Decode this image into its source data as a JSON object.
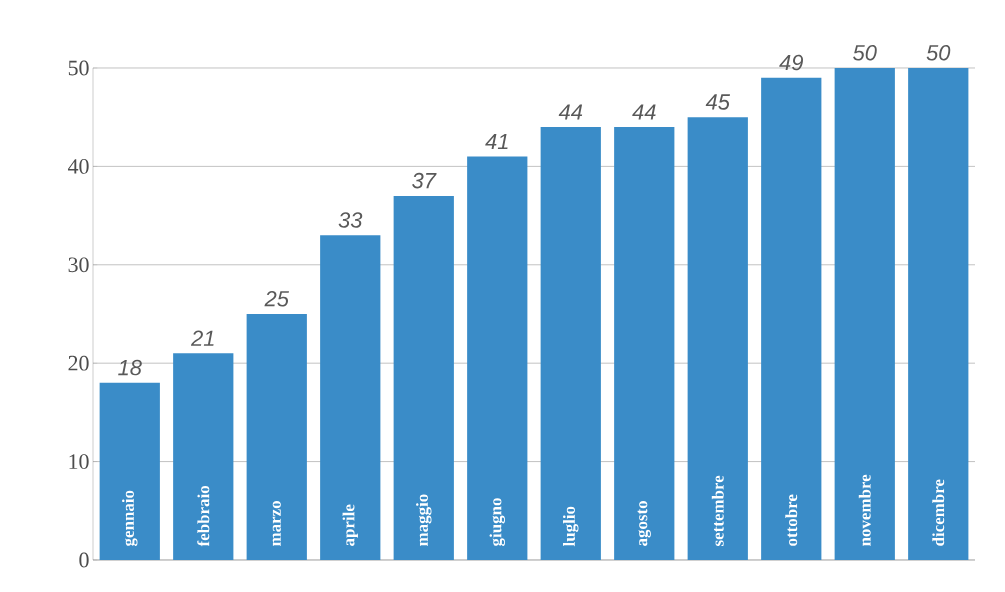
{
  "chart_data": {
    "type": "bar",
    "categories": [
      "gennaio",
      "febbraio",
      "marzo",
      "aprile",
      "maggio",
      "giugno",
      "luglio",
      "agosto",
      "settembre",
      "ottobre",
      "novembre",
      "dicembre"
    ],
    "values": [
      18,
      21,
      25,
      33,
      37,
      41,
      44,
      44,
      45,
      49,
      50,
      50
    ],
    "color": "#3a8cc8",
    "ylim": [
      0,
      50
    ],
    "yticks": [
      0,
      10,
      20,
      30,
      40,
      50
    ],
    "grid": "y",
    "data_labels": true
  }
}
